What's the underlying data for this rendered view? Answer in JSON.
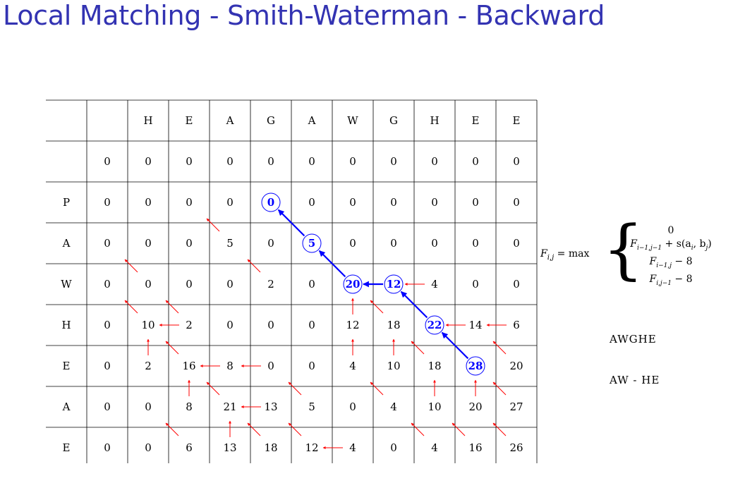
{
  "title": "Local Matching - Smith-Waterman - Backward",
  "matrix": {
    "col_headers": [
      "H",
      "E",
      "A",
      "G",
      "A",
      "W",
      "G",
      "H",
      "E",
      "E"
    ],
    "row_headers": [
      "",
      "P",
      "A",
      "W",
      "H",
      "E",
      "A",
      "E"
    ],
    "values": [
      [
        0,
        0,
        0,
        0,
        0,
        0,
        0,
        0,
        0,
        0,
        0
      ],
      [
        0,
        0,
        0,
        0,
        0,
        0,
        0,
        0,
        0,
        0,
        0
      ],
      [
        0,
        0,
        0,
        5,
        0,
        5,
        0,
        0,
        0,
        0,
        0
      ],
      [
        0,
        0,
        0,
        0,
        2,
        0,
        20,
        12,
        4,
        0,
        0
      ],
      [
        0,
        10,
        2,
        0,
        0,
        0,
        12,
        18,
        22,
        14,
        6
      ],
      [
        0,
        2,
        16,
        8,
        0,
        0,
        4,
        10,
        18,
        28,
        20
      ],
      [
        0,
        0,
        8,
        21,
        13,
        5,
        0,
        4,
        10,
        20,
        27
      ],
      [
        0,
        0,
        6,
        13,
        18,
        12,
        4,
        0,
        4,
        16,
        26
      ]
    ],
    "traceback_path": [
      [
        5,
        9
      ],
      [
        4,
        8
      ],
      [
        3,
        7
      ],
      [
        3,
        6
      ],
      [
        2,
        5
      ],
      [
        1,
        4
      ]
    ],
    "red_arrows": [
      {
        "from": [
          3,
          1
        ],
        "to": [
          2,
          0
        ],
        "dir": "diag"
      },
      {
        "from": [
          2,
          3
        ],
        "to": [
          1,
          2
        ],
        "dir": "diag"
      },
      {
        "from": [
          3,
          4
        ],
        "to": [
          2,
          3
        ],
        "dir": "diag"
      },
      {
        "from": [
          4,
          2
        ],
        "to": [
          3,
          1
        ],
        "dir": "diag"
      },
      {
        "from": [
          4,
          1
        ],
        "to": [
          3,
          0
        ],
        "dir": "diag"
      },
      {
        "from": [
          3,
          8
        ],
        "to": [
          3,
          7
        ],
        "dir": "left"
      },
      {
        "from": [
          4,
          2
        ],
        "to": [
          4,
          1
        ],
        "dir": "left"
      },
      {
        "from": [
          4,
          6
        ],
        "to": [
          3,
          6
        ],
        "dir": "up"
      },
      {
        "from": [
          4,
          7
        ],
        "to": [
          3,
          6
        ],
        "dir": "diag"
      },
      {
        "from": [
          4,
          9
        ],
        "to": [
          4,
          8
        ],
        "dir": "left"
      },
      {
        "from": [
          4,
          10
        ],
        "to": [
          4,
          9
        ],
        "dir": "left"
      },
      {
        "from": [
          5,
          1
        ],
        "to": [
          4,
          1
        ],
        "dir": "up"
      },
      {
        "from": [
          5,
          2
        ],
        "to": [
          4,
          1
        ],
        "dir": "diag"
      },
      {
        "from": [
          5,
          3
        ],
        "to": [
          5,
          2
        ],
        "dir": "left"
      },
      {
        "from": [
          5,
          4
        ],
        "to": [
          5,
          3
        ],
        "dir": "left"
      },
      {
        "from": [
          5,
          6
        ],
        "to": [
          4,
          6
        ],
        "dir": "up"
      },
      {
        "from": [
          5,
          7
        ],
        "to": [
          4,
          7
        ],
        "dir": "up"
      },
      {
        "from": [
          5,
          8
        ],
        "to": [
          4,
          7
        ],
        "dir": "diag"
      },
      {
        "from": [
          5,
          10
        ],
        "to": [
          4,
          9
        ],
        "dir": "diag"
      },
      {
        "from": [
          6,
          2
        ],
        "to": [
          5,
          2
        ],
        "dir": "up"
      },
      {
        "from": [
          6,
          3
        ],
        "to": [
          5,
          2
        ],
        "dir": "diag"
      },
      {
        "from": [
          6,
          4
        ],
        "to": [
          6,
          3
        ],
        "dir": "left"
      },
      {
        "from": [
          6,
          5
        ],
        "to": [
          5,
          4
        ],
        "dir": "diag"
      },
      {
        "from": [
          6,
          7
        ],
        "to": [
          5,
          6
        ],
        "dir": "diag"
      },
      {
        "from": [
          6,
          8
        ],
        "to": [
          5,
          8
        ],
        "dir": "up"
      },
      {
        "from": [
          6,
          9
        ],
        "to": [
          5,
          9
        ],
        "dir": "up"
      },
      {
        "from": [
          6,
          10
        ],
        "to": [
          5,
          9
        ],
        "dir": "diag"
      },
      {
        "from": [
          7,
          2
        ],
        "to": [
          6,
          1
        ],
        "dir": "diag"
      },
      {
        "from": [
          7,
          3
        ],
        "to": [
          6,
          3
        ],
        "dir": "up"
      },
      {
        "from": [
          7,
          4
        ],
        "to": [
          6,
          3
        ],
        "dir": "diag"
      },
      {
        "from": [
          7,
          5
        ],
        "to": [
          6,
          4
        ],
        "dir": "diag"
      },
      {
        "from": [
          7,
          6
        ],
        "to": [
          7,
          5
        ],
        "dir": "left"
      },
      {
        "from": [
          7,
          8
        ],
        "to": [
          6,
          7
        ],
        "dir": "diag"
      },
      {
        "from": [
          7,
          9
        ],
        "to": [
          6,
          8
        ],
        "dir": "diag"
      },
      {
        "from": [
          7,
          10
        ],
        "to": [
          6,
          9
        ],
        "dir": "diag"
      }
    ],
    "colors": {
      "path": "#0000ff",
      "arrow": "#ff0000",
      "grid": "#000000"
    }
  },
  "formula": {
    "lhs": "F",
    "lhs_sub": "i,j",
    "op": "= max",
    "cases": [
      "0",
      "F",
      "F",
      "F"
    ],
    "case_subs": [
      "",
      "i−1,j−1",
      "i−1,j",
      "i,j−1"
    ],
    "case_tails": [
      "",
      " + s(a",
      " − 8",
      " − 8"
    ],
    "case2_rest": ", b",
    "case2_i": "i",
    "case2_j": "j",
    "case2_close": ")"
  },
  "alignment": {
    "top": "AWGHE",
    "bottom": "AW - HE"
  }
}
